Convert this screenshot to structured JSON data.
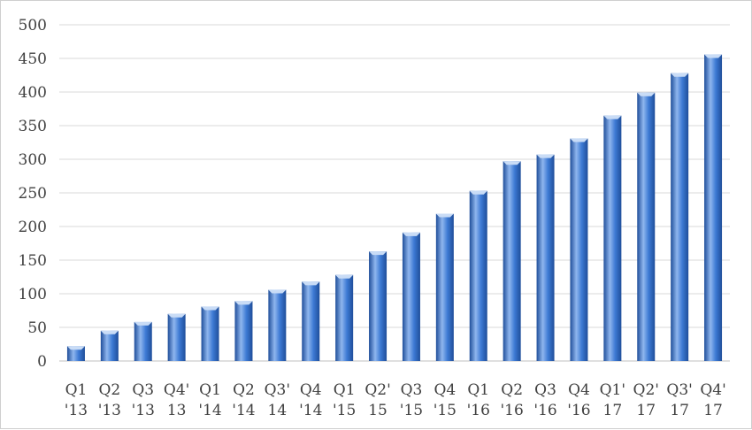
{
  "chart_data": {
    "type": "bar",
    "categories": [
      [
        "Q1",
        "'13"
      ],
      [
        "Q2",
        "'13"
      ],
      [
        "Q3",
        "'13"
      ],
      [
        "Q4'",
        "13"
      ],
      [
        "Q1",
        "'14"
      ],
      [
        "Q2",
        "'14"
      ],
      [
        "Q3'",
        "14"
      ],
      [
        "Q4",
        "'14"
      ],
      [
        "Q1",
        "'15"
      ],
      [
        "Q2'",
        "15"
      ],
      [
        "Q3",
        "'15"
      ],
      [
        "Q4",
        "'15"
      ],
      [
        "Q1",
        "'16"
      ],
      [
        "Q2",
        "'16"
      ],
      [
        "Q3",
        "'16"
      ],
      [
        "Q4",
        "'16"
      ],
      [
        "Q1'",
        "17"
      ],
      [
        "Q2'",
        "17"
      ],
      [
        "Q3'",
        "17"
      ],
      [
        "Q4'",
        "17"
      ]
    ],
    "values": [
      22,
      45,
      58,
      70,
      81,
      89,
      106,
      118,
      128,
      163,
      191,
      219,
      253,
      297,
      307,
      331,
      365,
      399,
      428,
      456
    ],
    "ylim": [
      0,
      500
    ],
    "yticks": [
      0,
      50,
      100,
      150,
      200,
      250,
      300,
      350,
      400,
      450,
      500
    ],
    "grid": true,
    "colors": {
      "bar_dark": "#1f4e9a",
      "bar_mid": "#3d7ad4",
      "bar_light": "#8fb6ee",
      "bar_top": "#c9dcf6"
    }
  }
}
